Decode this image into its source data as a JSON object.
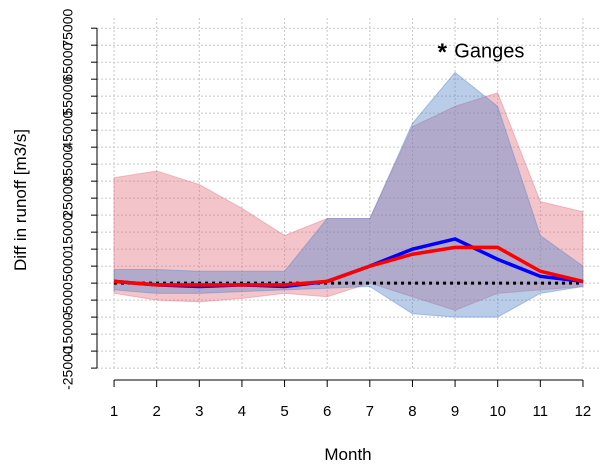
{
  "chart_data": {
    "type": "band-line",
    "annotation": "Ganges",
    "annotation_color": "#ff2020",
    "annotation_x": 8.7,
    "annotation_y": 68000,
    "x_label": "Month",
    "y_label": "Diff in runoff [m3/s]",
    "x": [
      1,
      2,
      3,
      4,
      5,
      6,
      7,
      8,
      9,
      10,
      11,
      12
    ],
    "xlim": [
      0.6,
      12.4
    ],
    "ylim": [
      -28500,
      78000
    ],
    "xticks": [
      1,
      2,
      3,
      4,
      5,
      6,
      7,
      8,
      9,
      10,
      11,
      12
    ],
    "yticks": [
      -25000,
      -15000,
      -5000,
      5000,
      15000,
      25000,
      35000,
      45000,
      55000,
      65000,
      75000
    ],
    "ygrid": [
      -25000,
      -20000,
      -15000,
      -10000,
      -5000,
      0,
      5000,
      10000,
      15000,
      20000,
      25000,
      30000,
      35000,
      40000,
      45000,
      50000,
      55000,
      60000,
      65000,
      70000,
      75000
    ],
    "grid": true,
    "reference_line": 0,
    "bands": [
      {
        "color": "rgba(225,110,125,0.4)",
        "upper": [
          31000,
          33000,
          29000,
          22000,
          14000,
          19000,
          19000,
          46000,
          52000,
          56000,
          24000,
          21000
        ],
        "lower": [
          -3000,
          -5000,
          -5500,
          -4500,
          -3000,
          -4000,
          0,
          -4000,
          -8000,
          -3000,
          -2000,
          -1000
        ]
      },
      {
        "color": "rgba(80,130,200,0.4)",
        "upper": [
          4000,
          4000,
          3500,
          3500,
          3500,
          19000,
          19000,
          47000,
          62000,
          52000,
          14000,
          5000
        ],
        "lower": [
          -2000,
          -3000,
          -3000,
          -2500,
          -2000,
          -1500,
          -1000,
          -9000,
          -10000,
          -10000,
          -3000,
          -1000
        ]
      }
    ],
    "series": [
      {
        "color": "#0000ff",
        "values": [
          500,
          -500,
          -1000,
          -500,
          -1000,
          500,
          5000,
          10000,
          13000,
          7000,
          2000,
          500
        ]
      },
      {
        "color": "#ff0000",
        "values": [
          500,
          -500,
          -500,
          -500,
          -500,
          500,
          5000,
          8500,
          10500,
          10500,
          3500,
          500
        ]
      }
    ]
  }
}
